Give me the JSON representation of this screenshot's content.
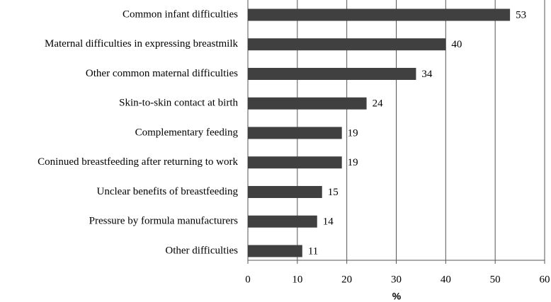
{
  "chart_data": {
    "type": "bar",
    "orientation": "horizontal",
    "categories": [
      "Common infant difficulties",
      "Maternal difficulties in expressing breastmilk",
      "Other common maternal difficulties",
      "Skin-to-skin contact at birth",
      "Complementary feeding",
      "Coninued breastfeeding after returning to work",
      "Unclear benefits of breastfeeding",
      "Pressure by formula manufacturers",
      "Other difficulties"
    ],
    "values": [
      53,
      40,
      34,
      24,
      19,
      19,
      15,
      14,
      11
    ],
    "color": "#404040",
    "xlabel": "%",
    "xlim": [
      0,
      60
    ],
    "xticks": [
      0,
      10,
      20,
      30,
      40,
      50,
      60
    ],
    "grid": true
  }
}
